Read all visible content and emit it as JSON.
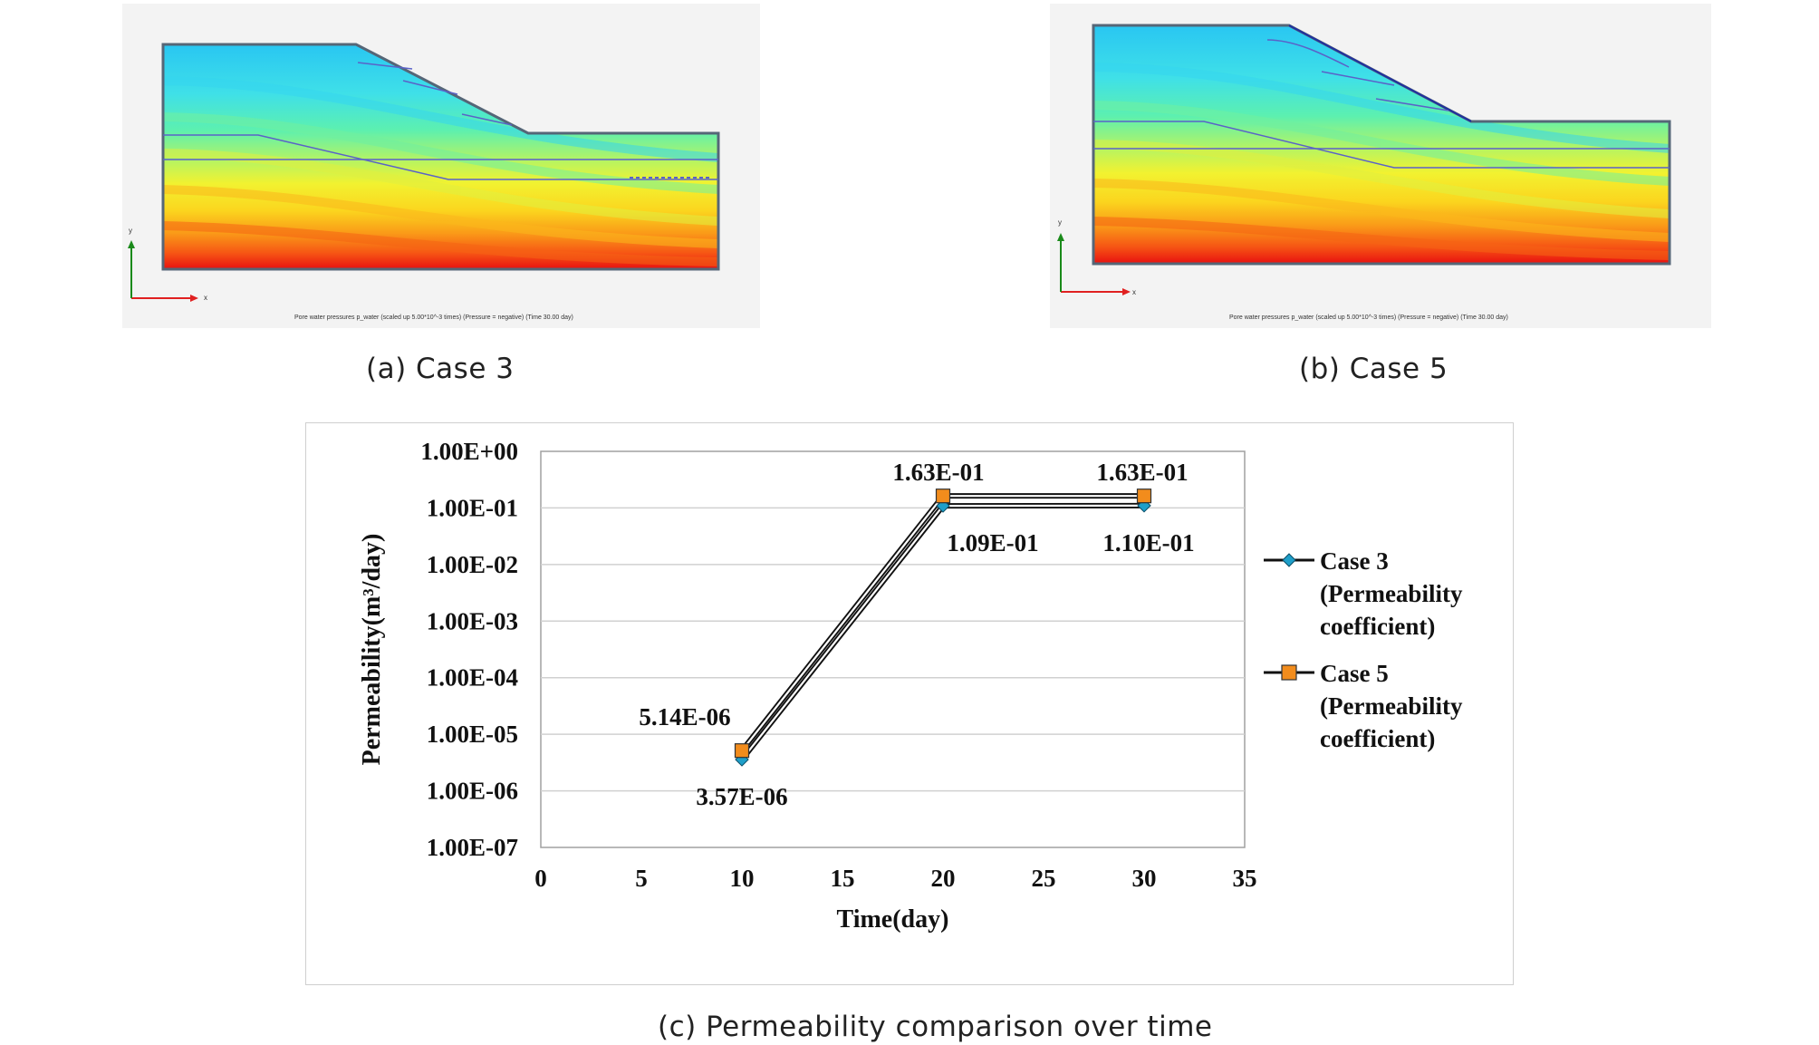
{
  "panels": {
    "a": {
      "caption": "(a) Case 3",
      "plot_title": "Pore water pressures p_water (scaled up 5.00*10^-3 times) (Pressure = negative) (Time 30.00 day)",
      "axis_x": "x",
      "axis_y": "y"
    },
    "b": {
      "caption": "(b) Case 5",
      "plot_title": "Pore water pressures p_water (scaled up 5.00*10^-3 times) (Pressure = negative) (Time 30.00 day)",
      "axis_x": "x",
      "axis_y": "y"
    },
    "c": {
      "caption": "(c) Permeability comparison over time"
    }
  },
  "colors": {
    "case3": "#1f9fc9",
    "case5": "#f28c1c",
    "gridline": "#d0d0d0"
  },
  "chart_data": {
    "type": "line",
    "title": "",
    "xlabel": "Time(day)",
    "ylabel": "Permeability(m³/day)",
    "xlim": [
      0,
      35
    ],
    "x_ticks": [
      0,
      5,
      10,
      15,
      20,
      25,
      30,
      35
    ],
    "y_scale": "log",
    "ylim": [
      1e-07,
      1
    ],
    "y_ticks": [
      1,
      0.1,
      0.01,
      0.001,
      0.0001,
      1e-05,
      1e-06,
      1e-07
    ],
    "y_tick_labels": [
      "1.00E+00",
      "1.00E-01",
      "1.00E-02",
      "1.00E-03",
      "1.00E-04",
      "1.00E-05",
      "1.00E-06",
      "1.00E-07"
    ],
    "grid": true,
    "legend_position": "right",
    "series": [
      {
        "name": "Case 3 (Permeability coefficient)",
        "legend_lines": [
          "Case 3",
          "(Permeability",
          "coefficient)"
        ],
        "marker": "diamond",
        "x": [
          10,
          20,
          30
        ],
        "values": [
          3.57e-06,
          0.109,
          0.11
        ],
        "labels": [
          "3.57E-06",
          "1.09E-01",
          "1.10E-01"
        ]
      },
      {
        "name": "Case 5 (Permeability coefficient)",
        "legend_lines": [
          "Case 5",
          "(Permeability",
          "coefficient)"
        ],
        "marker": "square",
        "x": [
          10,
          20,
          30
        ],
        "values": [
          5.14e-06,
          0.163,
          0.163
        ],
        "labels": [
          "5.14E-06",
          "1.63E-01",
          "1.63E-01"
        ]
      }
    ]
  }
}
